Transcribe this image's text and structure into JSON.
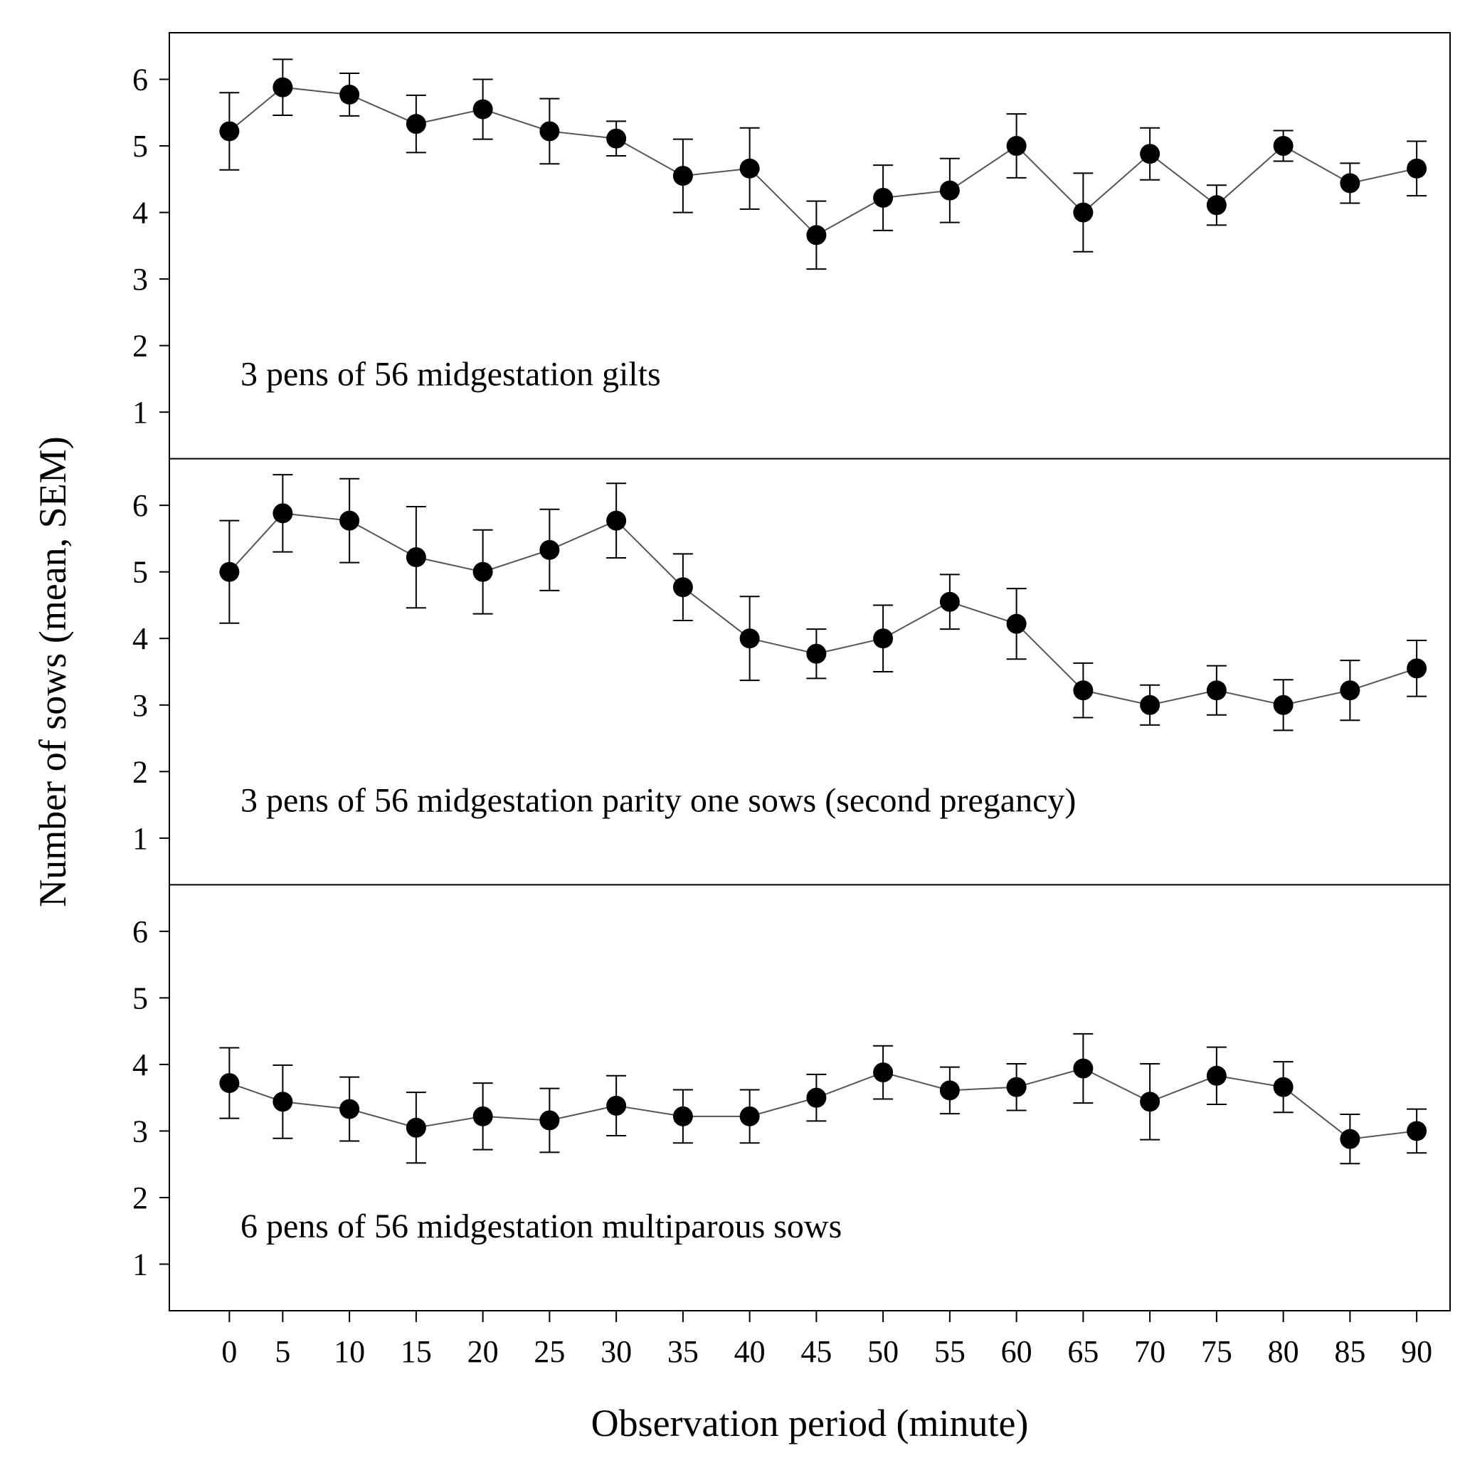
{
  "chart_data": {
    "type": "line",
    "xlabel": "Observation period (minute)",
    "ylabel": "Number of sows (mean, SEM)",
    "x": [
      1,
      5,
      10,
      15,
      20,
      25,
      30,
      35,
      40,
      45,
      50,
      55,
      60,
      65,
      70,
      75,
      80,
      85,
      90
    ],
    "x_ticks": [
      "0",
      "5",
      "10",
      "15",
      "20",
      "25",
      "30",
      "35",
      "40",
      "45",
      "50",
      "55",
      "60",
      "65",
      "70",
      "75",
      "80",
      "85",
      "90"
    ],
    "y_ticks": [
      "1",
      "2",
      "3",
      "4",
      "5",
      "6"
    ],
    "ylim": [
      0.3,
      6.7
    ],
    "xlim": [
      -3.5,
      92.5
    ],
    "series": [
      {
        "name": "3 pens of 56 midgestation gilts",
        "values": [
          5.22,
          5.88,
          5.77,
          5.33,
          5.55,
          5.22,
          5.11,
          4.55,
          4.66,
          3.66,
          4.22,
          4.33,
          5.0,
          4.0,
          4.88,
          4.11,
          5.0,
          4.44,
          4.66
        ],
        "sem": [
          0.58,
          0.42,
          0.32,
          0.43,
          0.45,
          0.49,
          0.26,
          0.55,
          0.61,
          0.51,
          0.49,
          0.48,
          0.48,
          0.59,
          0.39,
          0.3,
          0.23,
          0.3,
          0.41
        ]
      },
      {
        "name": "3 pens of 56 midgestation parity one sows (second pregancy)",
        "values": [
          5.0,
          5.88,
          5.77,
          5.22,
          5.0,
          5.33,
          5.77,
          4.77,
          4.0,
          3.77,
          4.0,
          4.55,
          4.22,
          3.22,
          3.0,
          3.22,
          3.0,
          3.22,
          3.55
        ],
        "sem": [
          0.77,
          0.58,
          0.63,
          0.76,
          0.63,
          0.61,
          0.56,
          0.5,
          0.63,
          0.37,
          0.5,
          0.41,
          0.53,
          0.41,
          0.3,
          0.37,
          0.38,
          0.45,
          0.42
        ]
      },
      {
        "name": "6 pens of 56 midgestation multiparous sows",
        "values": [
          3.72,
          3.44,
          3.33,
          3.05,
          3.22,
          3.16,
          3.38,
          3.22,
          3.22,
          3.5,
          3.88,
          3.61,
          3.66,
          3.94,
          3.44,
          3.83,
          3.66,
          2.88,
          3.0
        ],
        "sem": [
          0.53,
          0.55,
          0.48,
          0.53,
          0.5,
          0.48,
          0.45,
          0.4,
          0.4,
          0.35,
          0.4,
          0.35,
          0.35,
          0.52,
          0.57,
          0.43,
          0.38,
          0.37,
          0.33
        ]
      }
    ]
  }
}
